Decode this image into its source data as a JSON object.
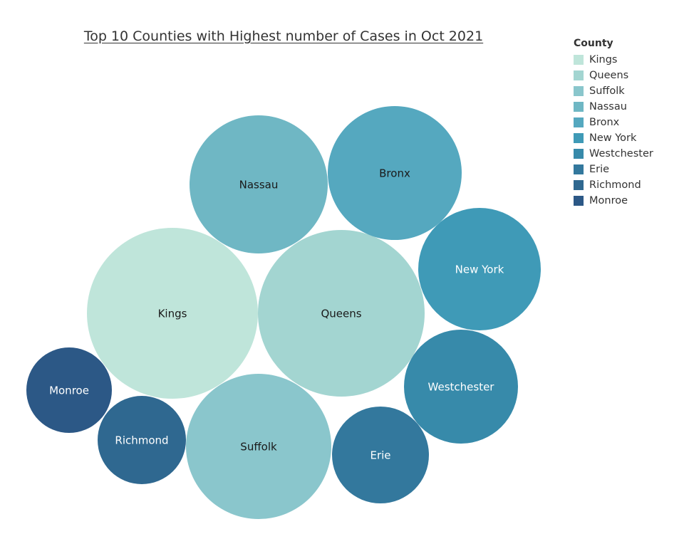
{
  "chart_data": {
    "type": "bubble",
    "title": "Top 10 Counties with Highest number of Cases in Oct 2021",
    "legend_title": "County",
    "legend_placement": "top-right",
    "series": [
      {
        "name": "Kings",
        "color": "#bfe5da",
        "label_color": "#1a1a1a"
      },
      {
        "name": "Queens",
        "color": "#a3d5d1",
        "label_color": "#1a1a1a"
      },
      {
        "name": "Suffolk",
        "color": "#8ac6cc",
        "label_color": "#1a1a1a"
      },
      {
        "name": "Nassau",
        "color": "#6fb7c4",
        "label_color": "#1a1a1a"
      },
      {
        "name": "Bronx",
        "color": "#55a8bf",
        "label_color": "#1a1a1a"
      },
      {
        "name": "New York",
        "color": "#3f9ab7",
        "label_color": "#ffffff"
      },
      {
        "name": "Westchester",
        "color": "#378aaa",
        "label_color": "#ffffff"
      },
      {
        "name": "Erie",
        "color": "#33789d",
        "label_color": "#ffffff"
      },
      {
        "name": "Richmond",
        "color": "#2f6890",
        "label_color": "#ffffff"
      },
      {
        "name": "Monroe",
        "color": "#2c5886",
        "label_color": "#ffffff"
      }
    ]
  }
}
